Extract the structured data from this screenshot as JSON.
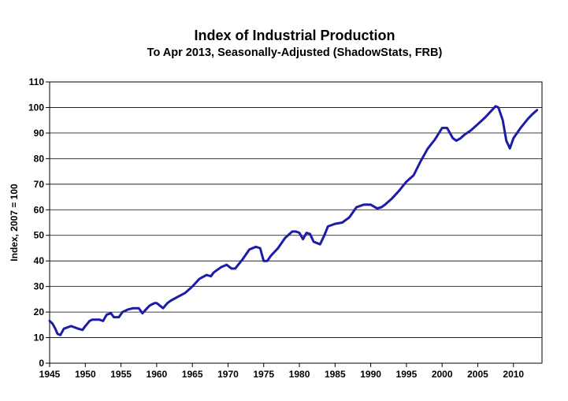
{
  "chart_data": {
    "type": "line",
    "title": "Index of Industrial Production",
    "subtitle": "To Apr 2013, Seasonally-Adjusted (ShadowStats, FRB)",
    "xlabel": "",
    "ylabel": "Index, 2007 = 100",
    "xlim": [
      1945,
      2014
    ],
    "ylim": [
      0,
      110
    ],
    "x_ticks": [
      "1945",
      "1950",
      "1955",
      "1960",
      "1965",
      "1970",
      "1975",
      "1980",
      "1985",
      "1990",
      "1995",
      "2000",
      "2005",
      "2010"
    ],
    "y_ticks": [
      "0",
      "10",
      "20",
      "30",
      "40",
      "50",
      "60",
      "70",
      "80",
      "90",
      "100",
      "110"
    ],
    "grid": "horizontal",
    "line_color": "#1c1ca6",
    "series": [
      {
        "x": [
          1945.0,
          1945.4,
          1945.8,
          1946.1,
          1946.5,
          1947.0,
          1948.0,
          1949.0,
          1949.6,
          1950.0,
          1950.6,
          1951.0,
          1952.0,
          1952.5,
          1953.0,
          1953.6,
          1954.0,
          1954.7,
          1955.2,
          1956.0,
          1956.7,
          1957.5,
          1958.0,
          1958.5,
          1959.0,
          1959.7,
          1960.0,
          1960.9,
          1961.5,
          1962.0,
          1963.0,
          1964.0,
          1965.0,
          1966.0,
          1967.0,
          1967.6,
          1968.0,
          1969.0,
          1969.8,
          1970.5,
          1971.0,
          1972.0,
          1973.0,
          1973.9,
          1974.5,
          1975.0,
          1975.5,
          1976.0,
          1977.0,
          1978.0,
          1979.0,
          1979.5,
          1980.0,
          1980.5,
          1981.0,
          1981.5,
          1982.0,
          1982.9,
          1983.5,
          1984.0,
          1985.0,
          1986.0,
          1987.0,
          1988.0,
          1989.0,
          1990.0,
          1990.9,
          1991.5,
          1992.0,
          1993.0,
          1994.0,
          1995.0,
          1996.0,
          1997.0,
          1998.0,
          1999.0,
          2000.0,
          2000.7,
          2001.5,
          2002.0,
          2002.6,
          2003.2,
          2004.0,
          2005.0,
          2006.0,
          2007.0,
          2007.5,
          2007.9,
          2008.5,
          2009.0,
          2009.5,
          2010.0,
          2011.0,
          2012.0,
          2012.7,
          2013.3
        ],
        "y": [
          16.5,
          15.5,
          13.5,
          11.5,
          11.0,
          13.5,
          14.5,
          13.5,
          13.0,
          14.5,
          16.5,
          17.0,
          17.0,
          16.5,
          19.0,
          19.5,
          18.0,
          18.0,
          20.0,
          21.0,
          21.5,
          21.5,
          19.5,
          21.0,
          22.5,
          23.5,
          23.5,
          21.5,
          23.5,
          24.5,
          26.0,
          27.5,
          30.0,
          33.0,
          34.5,
          34.0,
          35.5,
          37.5,
          38.5,
          37.0,
          37.0,
          40.5,
          44.5,
          45.5,
          45.0,
          40.0,
          40.0,
          42.0,
          45.0,
          49.0,
          51.5,
          51.5,
          51.0,
          48.5,
          51.0,
          50.5,
          47.5,
          46.5,
          50.0,
          53.5,
          54.5,
          55.0,
          57.0,
          61.0,
          62.0,
          62.0,
          60.5,
          61.0,
          62.0,
          64.5,
          67.5,
          71.0,
          73.5,
          79.0,
          84.0,
          87.5,
          92.0,
          92.0,
          88.0,
          87.0,
          88.0,
          89.5,
          91.0,
          93.5,
          96.0,
          99.0,
          100.5,
          100.0,
          95.0,
          87.0,
          84.0,
          88.0,
          92.0,
          95.5,
          97.5,
          99.0
        ]
      }
    ]
  }
}
